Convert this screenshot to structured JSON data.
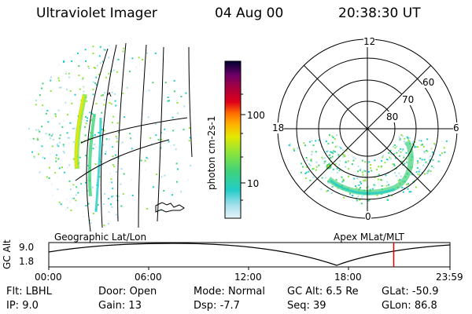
{
  "header": {
    "instrument": "Ultraviolet Imager",
    "date": "04 Aug 00",
    "time": "20:38:30 UT"
  },
  "left_panel": {
    "label": "Geographic Lat/Lon"
  },
  "right_panel": {
    "label": "Apex MLat/MLT",
    "mlt_labels": {
      "top": "12",
      "left": "18",
      "right": "6",
      "bottom": "0"
    },
    "lat_labels": [
      "60",
      "70",
      "80"
    ]
  },
  "colorbar": {
    "unit_label": "photon cm-2s-1",
    "ticks": [
      "100",
      "10"
    ],
    "colors": [
      "#e8f4fa",
      "#a8e0ee",
      "#22ccc8",
      "#40d27a",
      "#8ee53a",
      "#e6e800",
      "#ffb000",
      "#ff6a00",
      "#e0001a",
      "#b00038",
      "#70006a",
      "#000030"
    ]
  },
  "timeline": {
    "y_axis_label": "GC Alt",
    "y_ticks": [
      "9.0",
      "1.8"
    ],
    "x_ticks": [
      "00:00",
      "06:00",
      "12:00",
      "18:00",
      "23:59"
    ],
    "current_time_fraction": 0.8597,
    "marker_color": "#e00000"
  },
  "status": {
    "row1": [
      {
        "label": "Flt:",
        "value": "LBHL"
      },
      {
        "label": "Door:",
        "value": "Open"
      },
      {
        "label": "Mode:",
        "value": "Normal"
      },
      {
        "label": "GC Alt:",
        "value": "6.5 Re"
      },
      {
        "label": "GLat:",
        "value": "-50.9"
      }
    ],
    "row2": [
      {
        "label": "IP:",
        "value": "9.0"
      },
      {
        "label": "Gain:",
        "value": "13"
      },
      {
        "label": "Dsp:",
        "value": "-7.7"
      },
      {
        "label": "Seq:",
        "value": "39"
      },
      {
        "label": "GLon:",
        "value": "86.8"
      }
    ]
  }
}
